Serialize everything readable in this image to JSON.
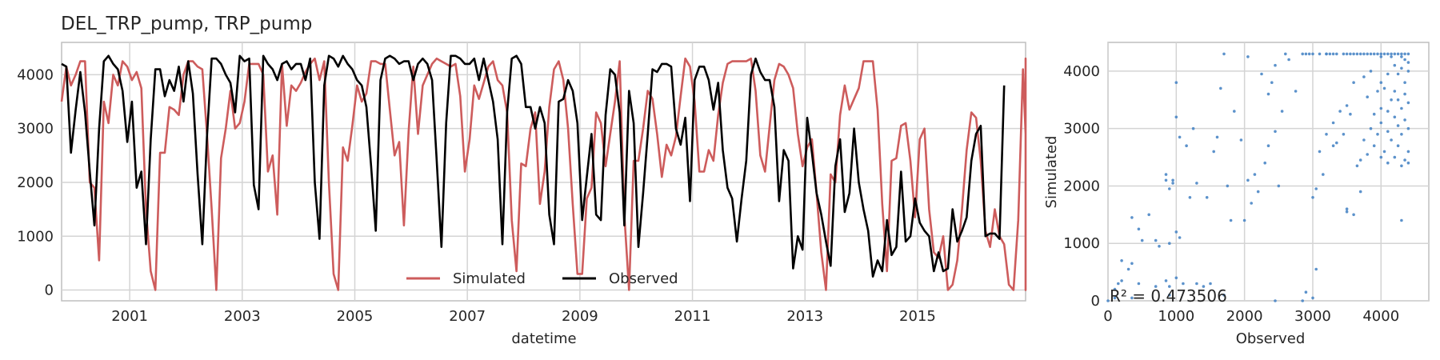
{
  "title": "DEL_TRP_pump, TRP_pump",
  "colors": {
    "simulated": "#cd5c5c",
    "observed": "#000000",
    "scatter": "#4a86c5",
    "grid": "#d4d4d4",
    "frame": "#bfbfbf"
  },
  "chart_data": [
    {
      "type": "line",
      "xlabel": "datetime",
      "ylabel": "",
      "xlim": [
        1999.79,
        2016.92
      ],
      "ylim": [
        -200,
        4600
      ],
      "x_ticks": [
        "2001",
        "2003",
        "2005",
        "2007",
        "2009",
        "2011",
        "2013",
        "2015"
      ],
      "y_ticks": [
        "0",
        "1000",
        "2000",
        "3000",
        "4000"
      ],
      "grid": true,
      "legend": "bottom-center",
      "series": [
        {
          "name": "Simulated",
          "color": "#cd5c5c",
          "x_start": 1999.79,
          "x_step": 0.08333,
          "values": [
            3500,
            4150,
            3800,
            4000,
            4250,
            4250,
            2000,
            1900,
            550,
            3500,
            3100,
            4000,
            3800,
            4250,
            4150,
            3900,
            4050,
            3750,
            1500,
            350,
            0,
            2550,
            2550,
            3400,
            3350,
            3250,
            4000,
            4250,
            4250,
            4150,
            4100,
            2900,
            1500,
            0,
            2450,
            3000,
            3700,
            3000,
            3100,
            3500,
            4200,
            4200,
            4200,
            4000,
            2200,
            2500,
            1400,
            4200,
            3050,
            3800,
            3700,
            3850,
            4050,
            4200,
            4300,
            3900,
            4250,
            2000,
            300,
            0,
            2650,
            2400,
            3050,
            3800,
            3500,
            3650,
            4250,
            4250,
            4200,
            4200,
            3350,
            2500,
            2750,
            1200,
            2950,
            4150,
            2900,
            3800,
            4000,
            4200,
            4300,
            4250,
            4200,
            4150,
            4200,
            3600,
            2200,
            2800,
            3800,
            3550,
            3850,
            4150,
            4250,
            3900,
            3800,
            3300,
            1300,
            350,
            2350,
            2300,
            3000,
            3300,
            1600,
            2200,
            3400,
            4100,
            4250,
            3900,
            3000,
            1600,
            300,
            300,
            1700,
            1900,
            3300,
            3100,
            2300,
            2900,
            3500,
            4250,
            1400,
            0,
            2400,
            2400,
            3000,
            3700,
            3550,
            2900,
            2100,
            2700,
            2500,
            2850,
            3600,
            4300,
            4150,
            3500,
            2200,
            2200,
            2600,
            2400,
            3250,
            3850,
            4200,
            4250,
            4250,
            4250,
            4250,
            4300,
            3700,
            2500,
            2200,
            3050,
            3900,
            4200,
            4150,
            4000,
            3750,
            2900,
            2300,
            2650,
            2800,
            1800,
            700,
            0,
            2150,
            2000,
            3250,
            3800,
            3350,
            3550,
            3750,
            4250,
            4250,
            4250,
            3350,
            1600,
            350,
            2400,
            2450,
            3050,
            3100,
            2400,
            1350,
            2800,
            3000,
            1500,
            700,
            600,
            1000,
            0,
            100,
            550,
            1500,
            2600,
            3300,
            3200,
            2400,
            1100,
            800,
            1500,
            1000,
            850,
            100,
            0,
            1300,
            4100,
            2900,
            1900,
            2500,
            3550,
            4250,
            4300,
            3300,
            250,
            0,
            3750,
            1700
          ]
        },
        {
          "name": "Observed",
          "color": "#000000",
          "x_start": 1999.79,
          "x_step": 0.08333,
          "values": [
            4200,
            4150,
            2550,
            3350,
            4050,
            3300,
            2200,
            1200,
            3000,
            4250,
            4350,
            4200,
            4100,
            3700,
            2750,
            3500,
            1900,
            2200,
            850,
            2800,
            4100,
            4100,
            3600,
            3900,
            3700,
            4150,
            3500,
            4250,
            3650,
            2150,
            850,
            2850,
            4300,
            4300,
            4200,
            4000,
            3850,
            3300,
            4350,
            4250,
            4300,
            1950,
            1500,
            4350,
            4200,
            4100,
            3900,
            4200,
            4250,
            4100,
            4200,
            4200,
            3900,
            4300,
            2000,
            950,
            3800,
            4350,
            4300,
            4150,
            4350,
            4200,
            4100,
            3900,
            3800,
            3400,
            2300,
            1100,
            3900,
            4300,
            4350,
            4300,
            4200,
            4250,
            4250,
            3900,
            4200,
            4300,
            4200,
            3900,
            2400,
            800,
            3100,
            4350,
            4350,
            4300,
            4200,
            4200,
            4300,
            3900,
            4300,
            3900,
            3500,
            2800,
            850,
            3300,
            4300,
            4350,
            4200,
            3400,
            3400,
            3000,
            3400,
            3100,
            1400,
            850,
            3500,
            3550,
            3900,
            3700,
            3100,
            1300,
            2100,
            2900,
            1400,
            1300,
            3250,
            4100,
            4000,
            3300,
            1200,
            3700,
            3100,
            800,
            1800,
            2900,
            4100,
            4050,
            4200,
            4200,
            4150,
            3000,
            2700,
            3200,
            1650,
            3900,
            4150,
            4150,
            3900,
            3350,
            3850,
            2600,
            1900,
            1700,
            900,
            1700,
            2400,
            4000,
            4300,
            4050,
            3900,
            3900,
            3400,
            1650,
            2600,
            2400,
            400,
            1000,
            750,
            3200,
            2550,
            1800,
            1400,
            900,
            450,
            2300,
            2800,
            1450,
            1800,
            3000,
            2000,
            1500,
            1100,
            250,
            550,
            350,
            1300,
            650,
            800,
            2200,
            900,
            1000,
            1700,
            1250,
            1100,
            1000,
            350,
            700,
            350,
            400,
            1500,
            900,
            1100,
            1350,
            2400,
            2900,
            3050,
            1000,
            1050,
            1050,
            950,
            3800
          ]
        }
      ]
    },
    {
      "type": "scatter",
      "xlabel": "Observed",
      "ylabel": "Simulated",
      "xlim": [
        0,
        4700
      ],
      "ylim": [
        0,
        4500
      ],
      "x_ticks": [
        "0",
        "1000",
        "2000",
        "3000",
        "4000"
      ],
      "y_ticks": [
        "0",
        "1000",
        "2000",
        "3000",
        "4000"
      ],
      "grid": true,
      "annotation": "R$^2 = 0.473506$",
      "annotation_display": "R² = 0.473506",
      "points": [
        [
          3800,
          4300
        ],
        [
          3850,
          4300
        ],
        [
          3900,
          4300
        ],
        [
          3950,
          4300
        ],
        [
          4000,
          4300
        ],
        [
          4050,
          4300
        ],
        [
          4100,
          4300
        ],
        [
          4150,
          4300
        ],
        [
          4200,
          4300
        ],
        [
          4250,
          4300
        ],
        [
          4300,
          4300
        ],
        [
          4350,
          4300
        ],
        [
          4400,
          4300
        ],
        [
          2850,
          4300
        ],
        [
          2900,
          4300
        ],
        [
          2950,
          4300
        ],
        [
          3000,
          4300
        ],
        [
          3100,
          4300
        ],
        [
          3200,
          4300
        ],
        [
          3300,
          4300
        ],
        [
          3350,
          4300
        ],
        [
          3500,
          4300
        ],
        [
          3550,
          4300
        ],
        [
          3600,
          4300
        ],
        [
          3700,
          4300
        ],
        [
          3750,
          4300
        ],
        [
          4000,
          4250
        ],
        [
          4150,
          4250
        ],
        [
          4300,
          4250
        ],
        [
          4350,
          4200
        ],
        [
          4400,
          4150
        ],
        [
          4200,
          4100
        ],
        [
          4300,
          4050
        ],
        [
          4100,
          3950
        ],
        [
          4250,
          3950
        ],
        [
          4400,
          4000
        ],
        [
          4000,
          3800
        ],
        [
          4350,
          3800
        ],
        [
          4050,
          3700
        ],
        [
          4200,
          3650
        ],
        [
          4350,
          3600
        ],
        [
          4150,
          3500
        ],
        [
          4250,
          3500
        ],
        [
          4400,
          3450
        ],
        [
          4000,
          3350
        ],
        [
          4100,
          3300
        ],
        [
          4300,
          3350
        ],
        [
          4200,
          3200
        ],
        [
          4350,
          3150
        ],
        [
          4000,
          3100
        ],
        [
          4250,
          3050
        ],
        [
          4400,
          3000
        ],
        [
          4100,
          2950
        ],
        [
          4300,
          2900
        ],
        [
          4150,
          2800
        ],
        [
          4250,
          2700
        ],
        [
          4050,
          2600
        ],
        [
          4400,
          2600
        ],
        [
          4200,
          2500
        ],
        [
          4350,
          2450
        ],
        [
          4400,
          2400
        ],
        [
          4300,
          2350
        ],
        [
          4000,
          2500
        ],
        [
          4100,
          2400
        ],
        [
          4300,
          1400
        ],
        [
          3850,
          4000
        ],
        [
          3750,
          3900
        ],
        [
          3950,
          3650
        ],
        [
          3800,
          3550
        ],
        [
          3900,
          3250
        ],
        [
          3850,
          3000
        ],
        [
          3750,
          2800
        ],
        [
          3900,
          2700
        ],
        [
          3950,
          2900
        ],
        [
          3800,
          2550
        ],
        [
          3700,
          2450
        ],
        [
          3600,
          3800
        ],
        [
          3500,
          3400
        ],
        [
          3550,
          3250
        ],
        [
          3400,
          3300
        ],
        [
          3300,
          3100
        ],
        [
          3450,
          2900
        ],
        [
          3200,
          2900
        ],
        [
          3350,
          2750
        ],
        [
          3100,
          2600
        ],
        [
          3050,
          1950
        ],
        [
          3150,
          2200
        ],
        [
          3000,
          1800
        ],
        [
          3300,
          2700
        ],
        [
          3500,
          1600
        ],
        [
          3500,
          1550
        ],
        [
          3600,
          1500
        ],
        [
          3700,
          1900
        ],
        [
          3050,
          550
        ],
        [
          3650,
          2350
        ],
        [
          2600,
          4300
        ],
        [
          2450,
          4100
        ],
        [
          2400,
          3800
        ],
        [
          2350,
          3600
        ],
        [
          2250,
          3950
        ],
        [
          2550,
          3300
        ],
        [
          2450,
          2950
        ],
        [
          2300,
          2400
        ],
        [
          2150,
          2200
        ],
        [
          2500,
          2000
        ],
        [
          2050,
          2100
        ],
        [
          2100,
          1700
        ],
        [
          2000,
          1400
        ],
        [
          2200,
          1900
        ],
        [
          2350,
          2700
        ],
        [
          1850,
          3300
        ],
        [
          1950,
          2800
        ],
        [
          1650,
          3700
        ],
        [
          1600,
          2850
        ],
        [
          1750,
          2000
        ],
        [
          1700,
          4300
        ],
        [
          1800,
          1400
        ],
        [
          1550,
          2600
        ],
        [
          1450,
          1800
        ],
        [
          1250,
          3000
        ],
        [
          1300,
          2050
        ],
        [
          1200,
          1800
        ],
        [
          1150,
          2700
        ],
        [
          1050,
          2850
        ],
        [
          1000,
          3800
        ],
        [
          1000,
          3200
        ],
        [
          950,
          2100
        ],
        [
          950,
          2050
        ],
        [
          850,
          2200
        ],
        [
          850,
          2100
        ],
        [
          900,
          1950
        ],
        [
          1000,
          1200
        ],
        [
          900,
          1000
        ],
        [
          1050,
          1100
        ],
        [
          750,
          950
        ],
        [
          700,
          1050
        ],
        [
          600,
          1500
        ],
        [
          500,
          1050
        ],
        [
          450,
          1250
        ],
        [
          350,
          1450
        ],
        [
          350,
          650
        ],
        [
          300,
          550
        ],
        [
          200,
          700
        ],
        [
          150,
          300
        ],
        [
          200,
          350
        ],
        [
          100,
          200
        ],
        [
          0,
          0
        ],
        [
          100,
          50
        ],
        [
          350,
          50
        ],
        [
          450,
          300
        ],
        [
          700,
          250
        ],
        [
          850,
          350
        ],
        [
          900,
          250
        ],
        [
          1000,
          400
        ],
        [
          1100,
          300
        ],
        [
          1300,
          300
        ],
        [
          1500,
          300
        ],
        [
          1400,
          250
        ],
        [
          900,
          100
        ],
        [
          1700,
          100
        ],
        [
          2450,
          0
        ],
        [
          2850,
          0
        ],
        [
          3000,
          50
        ],
        [
          2900,
          150
        ],
        [
          3200,
          4300
        ],
        [
          3250,
          4300
        ],
        [
          3450,
          4300
        ],
        [
          3650,
          4300
        ],
        [
          2750,
          3650
        ],
        [
          2650,
          4200
        ],
        [
          2050,
          4250
        ]
      ]
    }
  ]
}
